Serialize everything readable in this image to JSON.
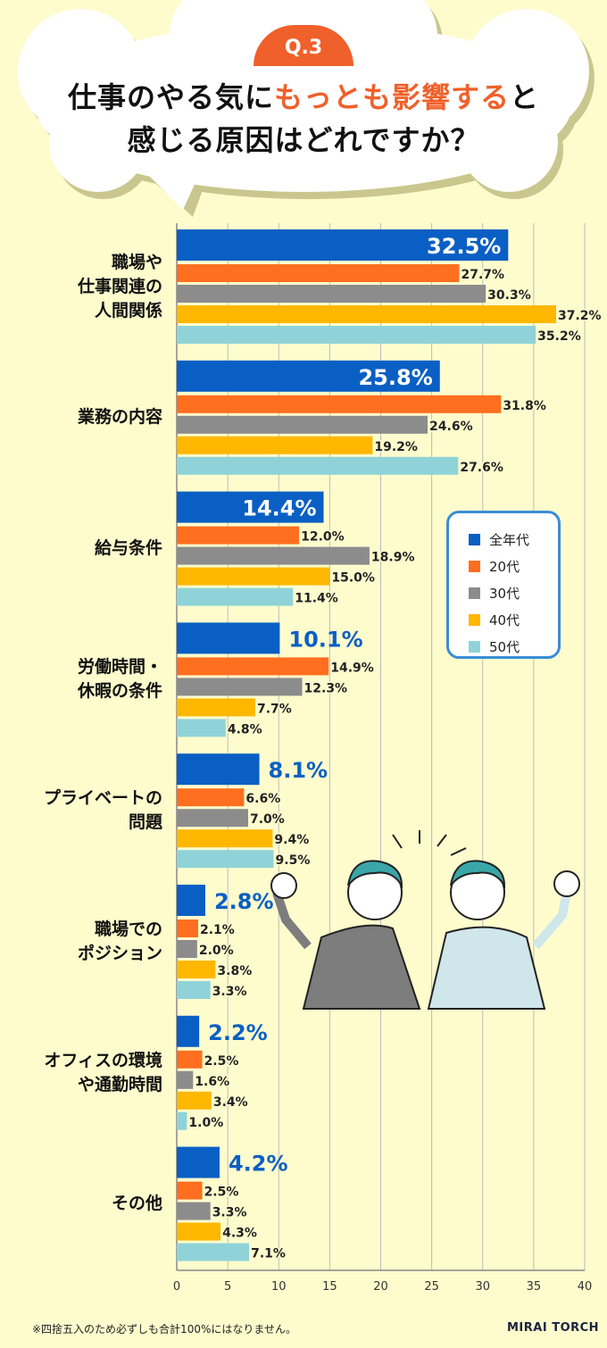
{
  "header": {
    "badge": "Q.3",
    "title_line1_a": "仕事のやる気に",
    "title_line1_b": "もっとも影響する",
    "title_line1_c": "と",
    "title_line2": "感じる原因はどれですか？"
  },
  "chart_data": {
    "type": "bar",
    "orientation": "horizontal",
    "categories": [
      "職場や\n仕事関連の\n人間関係",
      "業務の内容",
      "給与条件",
      "労働時間・\n休暇の条件",
      "プライベートの\n問題",
      "職場での\nポジション",
      "オフィスの環境\nや通勤時間",
      "その他"
    ],
    "series": [
      {
        "name": "全年代",
        "color": "#0a5fc4",
        "values": [
          32.5,
          25.8,
          14.4,
          10.1,
          8.1,
          2.8,
          2.2,
          4.2
        ]
      },
      {
        "name": "20代",
        "color": "#ff6f1f",
        "values": [
          27.7,
          31.8,
          12.0,
          14.9,
          6.6,
          2.1,
          2.5,
          2.5
        ]
      },
      {
        "name": "30代",
        "color": "#8c8c8c",
        "values": [
          30.3,
          24.6,
          18.9,
          12.3,
          7.0,
          2.0,
          1.6,
          3.3
        ]
      },
      {
        "name": "40代",
        "color": "#ffb700",
        "values": [
          37.2,
          19.2,
          15.0,
          7.7,
          9.4,
          3.8,
          3.4,
          4.3
        ]
      },
      {
        "name": "50代",
        "color": "#8fd3d9",
        "values": [
          35.2,
          27.6,
          11.4,
          4.8,
          9.5,
          3.3,
          1.0,
          7.1
        ]
      }
    ],
    "xlim": [
      0,
      40
    ],
    "xticks": [
      "0",
      "5",
      "10",
      "15",
      "20",
      "25",
      "30",
      "35",
      "40"
    ],
    "grid": true,
    "legend": "right",
    "value_suffix": "%"
  },
  "footer": {
    "note": "※四捨五入のため必ずしも合計100%にはなりません。",
    "logo": "MIRAI TORCH"
  }
}
